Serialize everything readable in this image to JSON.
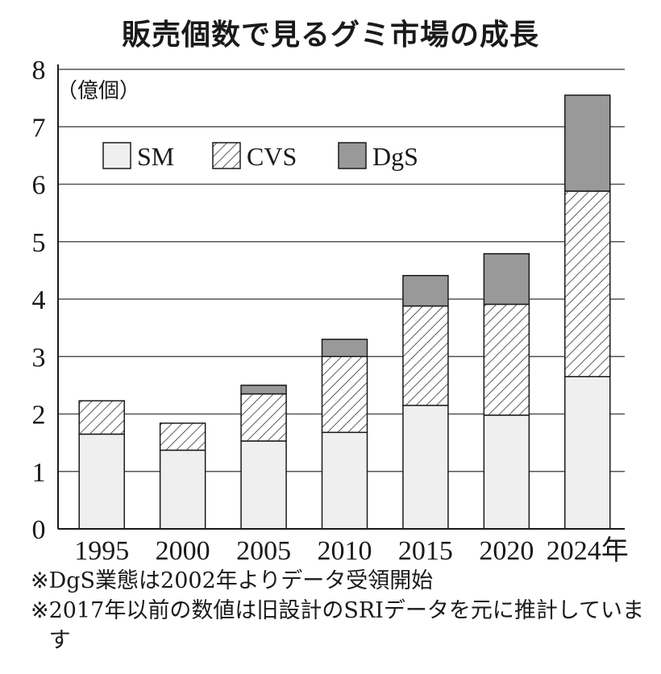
{
  "title": "販売個数で見るグミ市場の成長",
  "chart_data": {
    "type": "bar",
    "stacked": true,
    "title": "販売個数で見るグミ市場の成長",
    "unit_label": "（億個）",
    "categories": [
      "1995",
      "2000",
      "2005",
      "2010",
      "2015",
      "2020",
      "2024年"
    ],
    "series": [
      {
        "name": "SM",
        "values": [
          1.65,
          1.37,
          1.53,
          1.68,
          2.15,
          1.98,
          2.65
        ],
        "color": "#efefef",
        "pattern": "solid"
      },
      {
        "name": "CVS",
        "values": [
          0.58,
          0.47,
          0.82,
          1.32,
          1.73,
          1.93,
          3.23
        ],
        "color": "#ffffff",
        "pattern": "hatch"
      },
      {
        "name": "DgS",
        "values": [
          0.0,
          0.0,
          0.15,
          0.3,
          0.53,
          0.88,
          1.67
        ],
        "color": "#999999",
        "pattern": "solid"
      }
    ],
    "ylim": [
      0,
      8
    ],
    "yticks": [
      0,
      1,
      2,
      3,
      4,
      5,
      6,
      7,
      8
    ],
    "grid": true,
    "legend": "top-left"
  },
  "notes": [
    {
      "mark": "※",
      "text": "DgS業態は2002年よりデータ受領開始"
    },
    {
      "mark": "※",
      "text": "2017年以前の数値は旧設計のSRIデータを元に推計しています"
    }
  ]
}
